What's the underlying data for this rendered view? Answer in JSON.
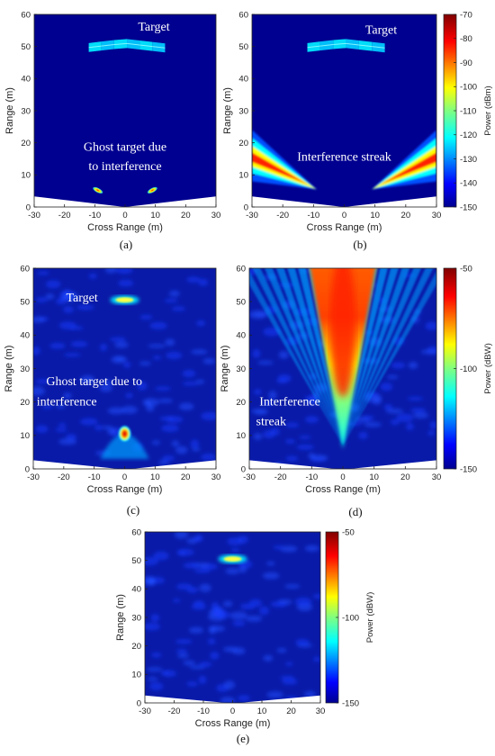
{
  "colorscale": [
    "#00008f",
    "#0000ff",
    "#0080ff",
    "#00ffff",
    "#80ff80",
    "#ffff00",
    "#ff8000",
    "#ff0000",
    "#800000"
  ],
  "chart_data": [
    {
      "id": "a",
      "type": "heatmap",
      "panel_label": "(a)",
      "xlabel": "Cross Range (m)",
      "ylabel": "Range (m)",
      "xlim": [
        -30,
        30
      ],
      "ylim": [
        0,
        60
      ],
      "xticks": [
        "-30",
        "-20",
        "-10",
        "0",
        "10",
        "20",
        "30"
      ],
      "yticks": [
        "0",
        "10",
        "20",
        "30",
        "40",
        "50",
        "60"
      ],
      "annotations": [
        {
          "text": "Target",
          "x": 9.5,
          "y": 55
        },
        {
          "text": "Ghost target due",
          "x": 0,
          "y": 17.5
        },
        {
          "text": "to interference",
          "x": 0,
          "y": 11.5
        }
      ]
    },
    {
      "id": "b",
      "type": "heatmap",
      "panel_label": "(b)",
      "xlabel": "Cross Range (m)",
      "ylabel": "Range (m)",
      "xlim": [
        -30,
        30
      ],
      "ylim": [
        0,
        60
      ],
      "xticks": [
        "-30",
        "-20",
        "-10",
        "0",
        "10",
        "20",
        "30"
      ],
      "yticks": [
        "0",
        "10",
        "20",
        "30",
        "40",
        "50",
        "60"
      ],
      "annotations": [
        {
          "text": "Target",
          "x": 12,
          "y": 54
        },
        {
          "text": "Interference streak",
          "x": 0,
          "y": 14.5
        }
      ],
      "colorbar": {
        "label": "Power (dBm)",
        "ticks": [
          "-70",
          "-80",
          "-90",
          "-100",
          "-110",
          "-120",
          "-130",
          "-140",
          "-150"
        ],
        "range": [
          -150,
          -70
        ]
      }
    },
    {
      "id": "c",
      "type": "heatmap",
      "panel_label": "(c)",
      "xlabel": "Cross Range (m)",
      "ylabel": "Range (m)",
      "xlim": [
        -30,
        30
      ],
      "ylim": [
        0,
        60
      ],
      "xticks": [
        "-30",
        "-20",
        "-10",
        "0",
        "10",
        "20",
        "30"
      ],
      "yticks": [
        "0",
        "10",
        "20",
        "30",
        "40",
        "50",
        "60"
      ],
      "annotations": [
        {
          "text": "Target",
          "x": -14,
          "y": 50
        },
        {
          "text": "Ghost target due to",
          "x": -10,
          "y": 25
        },
        {
          "text": "interference",
          "x": -19,
          "y": 19
        }
      ]
    },
    {
      "id": "d",
      "type": "heatmap",
      "panel_label": "(d)",
      "xlabel": "Cross Range (m)",
      "ylabel": "Range (m)",
      "xlim": [
        -30,
        30
      ],
      "ylim": [
        0,
        60
      ],
      "xticks": [
        "-30",
        "-20",
        "-10",
        "0",
        "10",
        "20",
        "30"
      ],
      "yticks": [
        "0",
        "10",
        "20",
        "30",
        "40",
        "50",
        "60"
      ],
      "annotations": [
        {
          "text": "Interference",
          "x": -17,
          "y": 19
        },
        {
          "text": "streak",
          "x": -23,
          "y": 13
        }
      ],
      "colorbar": {
        "label": "Power (dBW)",
        "ticks": [
          "-50",
          "-100",
          "-150"
        ],
        "range": [
          -150,
          -50
        ]
      }
    },
    {
      "id": "e",
      "type": "heatmap",
      "panel_label": "(e)",
      "xlabel": "Cross Range (m)",
      "ylabel": "Range (m)",
      "xlim": [
        -30,
        30
      ],
      "ylim": [
        0,
        60
      ],
      "xticks": [
        "-30",
        "-20",
        "-10",
        "0",
        "10",
        "20",
        "30"
      ],
      "yticks": [
        "0",
        "10",
        "20",
        "30",
        "40",
        "50",
        "60"
      ],
      "annotations": [],
      "colorbar": {
        "label": "Power (dBW)",
        "ticks": [
          "-50",
          "-100",
          "-150"
        ],
        "range": [
          -150,
          -50
        ]
      }
    }
  ]
}
